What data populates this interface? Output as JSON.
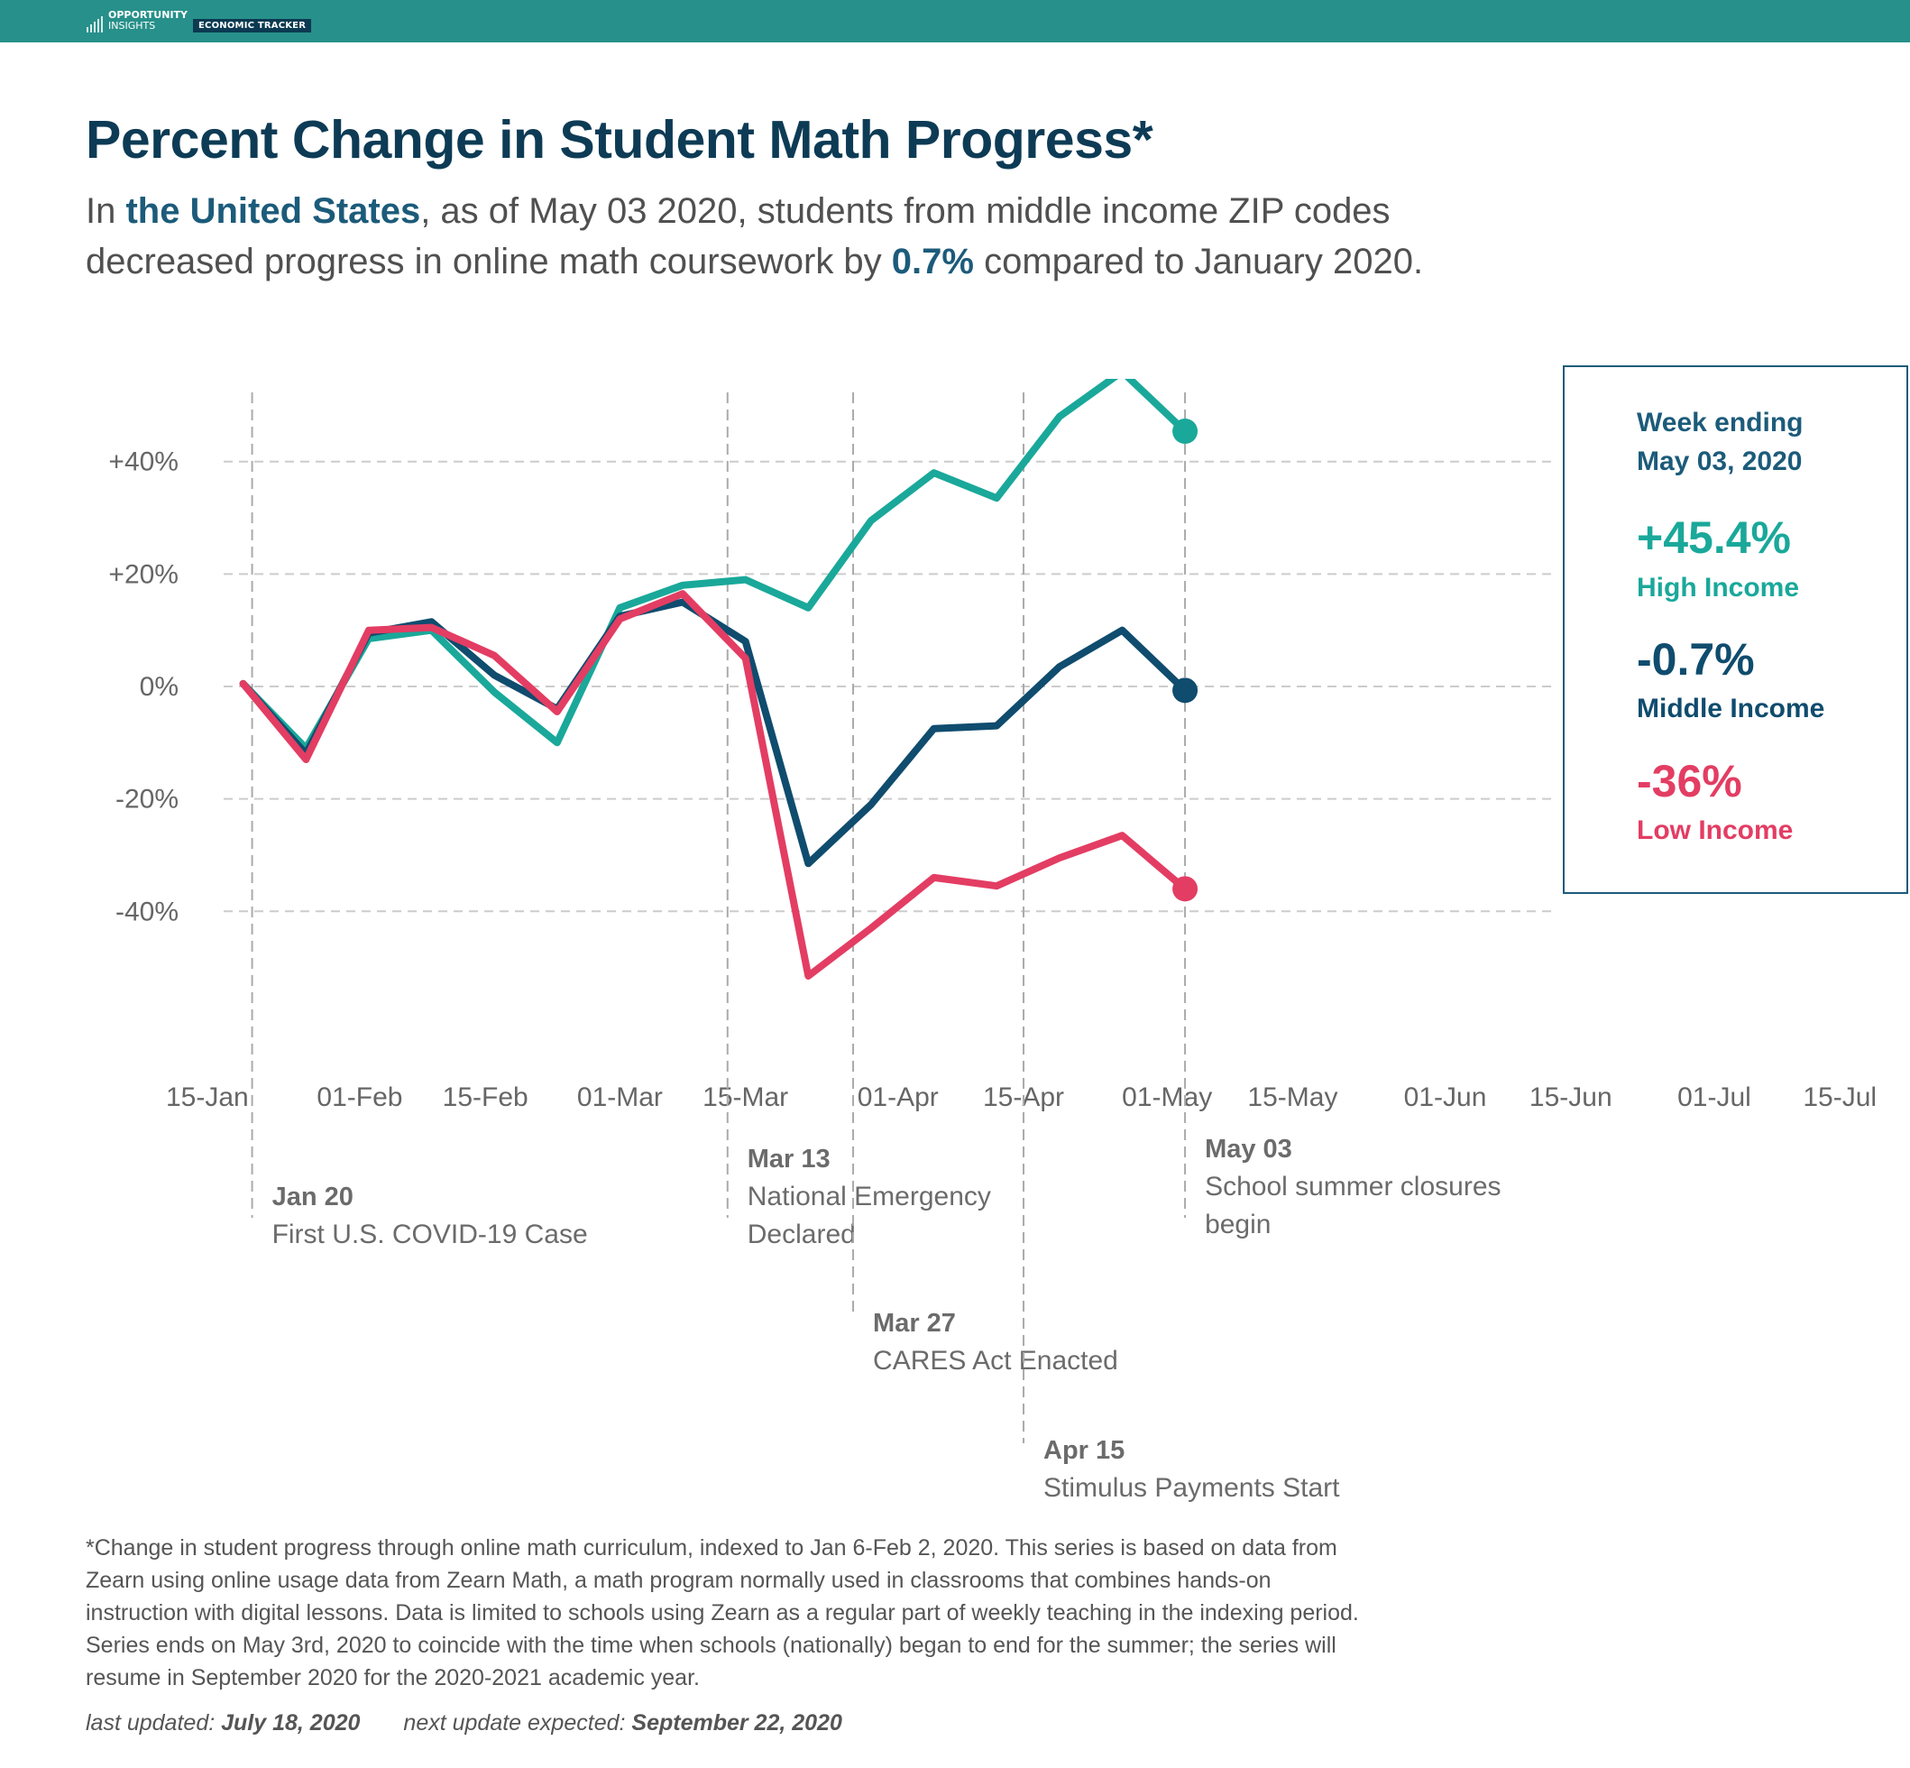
{
  "header": {
    "logo_line1": "OPPORTUNITY",
    "logo_line2": "INSIGHTS",
    "badge": "ECONOMIC TRACKER",
    "bar_color": "#27908a"
  },
  "title": "Percent Change in Student Math Progress*",
  "subtitle": {
    "p1": "In ",
    "region": "the United States",
    "p2": ", as of May 03 2020, students from middle income ZIP codes decreased progress in online math coursework by ",
    "value": "0.7%",
    "p3": " compared to January 2020."
  },
  "infobox": {
    "week_line1": "Week ending",
    "week_line2": "May 03, 2020",
    "high_value": "+45.4%",
    "high_label": "High Income",
    "middle_value": "-0.7%",
    "middle_label": "Middle Income",
    "low_value": "-36%",
    "low_label": "Low Income"
  },
  "footnote": "*Change in student progress through online math curriculum, indexed to Jan 6-Feb 2, 2020. This series is based on data from Zearn using online usage data from Zearn Math, a math program normally used in classrooms that combines hands-on instruction with digital lessons. Data is limited to schools using Zearn as a regular part of weekly teaching in the indexing period. Series ends on May 3rd, 2020 to coincide with the time when schools (nationally) began to end for the summer; the series will resume in September 2020 for the 2020-2021 academic year.",
  "updated": {
    "last_label": "last updated: ",
    "last_value": "July 18, 2020",
    "next_label": "next update expected: ",
    "next_value": "September 22, 2020"
  },
  "chart_data": {
    "type": "line",
    "title": "Percent Change in Student Math Progress*",
    "x_ticks": [
      "2020-01-15",
      "2020-02-01",
      "2020-02-15",
      "2020-03-01",
      "2020-03-15",
      "2020-04-01",
      "2020-04-15",
      "2020-05-01",
      "2020-05-15",
      "2020-06-01",
      "2020-06-15",
      "2020-07-01",
      "2020-07-15"
    ],
    "x_tick_labels": [
      "15-Jan",
      "01-Feb",
      "15-Feb",
      "01-Mar",
      "15-Mar",
      "01-Apr",
      "15-Apr",
      "01-May",
      "15-May",
      "01-Jun",
      "15-Jun",
      "01-Jul",
      "15-Jul"
    ],
    "xlim": [
      "2020-01-12",
      "2020-07-19"
    ],
    "y_ticks": [
      40,
      20,
      0,
      -20,
      -40
    ],
    "y_tick_labels": [
      "+40%",
      "+20%",
      "0%",
      "-20%",
      "-40%"
    ],
    "ylim": [
      -56,
      56
    ],
    "grid": "horizontal-dashed",
    "x": [
      "2020-01-19",
      "2020-01-26",
      "2020-02-02",
      "2020-02-09",
      "2020-02-16",
      "2020-02-23",
      "2020-03-01",
      "2020-03-08",
      "2020-03-15",
      "2020-03-22",
      "2020-03-29",
      "2020-04-05",
      "2020-04-12",
      "2020-04-19",
      "2020-04-26",
      "2020-05-03"
    ],
    "series": [
      {
        "name": "High Income",
        "color": "#1aa89a",
        "values": [
          0.5,
          -11,
          8.5,
          10,
          -1,
          -10,
          14,
          18,
          19,
          14,
          29.5,
          38,
          33.5,
          48,
          56,
          45.4
        ]
      },
      {
        "name": "Middle Income",
        "color": "#0f4c6e",
        "values": [
          0.5,
          -12,
          9.5,
          11.5,
          2,
          -4,
          12.5,
          15,
          8,
          -31.5,
          -21,
          -7.5,
          -7,
          3.5,
          10,
          -0.7
        ]
      },
      {
        "name": "Low Income",
        "color": "#e33d63",
        "values": [
          0.5,
          -13,
          10,
          10.5,
          5.5,
          -4.5,
          12,
          16.5,
          5,
          -51.5,
          -43,
          -34,
          -35.5,
          -30.5,
          -26.5,
          -36
        ]
      }
    ],
    "events": [
      {
        "date": "2020-01-20",
        "label_date": "Jan 20",
        "label": [
          "First U.S. COVID-19 Case"
        ]
      },
      {
        "date": "2020-03-13",
        "label_date": "Mar 13",
        "label": [
          "National Emergency",
          "Declared"
        ]
      },
      {
        "date": "2020-03-27",
        "label_date": "Mar 27",
        "label": [
          "CARES Act Enacted"
        ]
      },
      {
        "date": "2020-04-15",
        "label_date": "Apr 15",
        "label": [
          "Stimulus Payments Start"
        ]
      },
      {
        "date": "2020-05-03",
        "label_date": "May 03",
        "label": [
          "School summer closures",
          "begin"
        ]
      }
    ],
    "endpoint_date": "2020-05-03"
  }
}
